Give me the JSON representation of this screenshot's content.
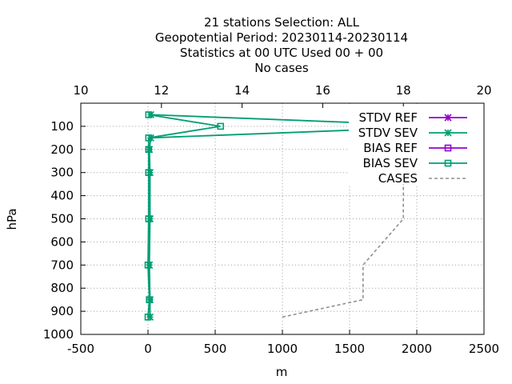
{
  "title_lines": [
    "21 stations Selection: ALL",
    "Geopotential  Period: 20230114-20230114",
    "Statistics at 00 UTC  Used  00 + 00",
    "No cases"
  ],
  "chart_data": {
    "type": "line",
    "xlabel": "m",
    "ylabel": "hPa",
    "x_range": [
      -500,
      2500
    ],
    "y_range": [
      0,
      1000
    ],
    "y_inverted": true,
    "x_ticks": [
      -500,
      0,
      500,
      1000,
      1500,
      2000,
      2500
    ],
    "y_ticks": [
      100,
      200,
      300,
      400,
      500,
      600,
      700,
      800,
      900,
      1000
    ],
    "x2_range": [
      10,
      20
    ],
    "x2_ticks": [
      10,
      12,
      14,
      16,
      18,
      20
    ],
    "grid": true,
    "legend_position": "top-right",
    "series": [
      {
        "name": "STDV REF",
        "color": "#9400d3",
        "marker": "x-star",
        "axis": "bottom",
        "points": []
      },
      {
        "name": "STDV SEV",
        "color": "#009e73",
        "marker": "x-star",
        "axis": "bottom",
        "points": [
          [
            15,
            925
          ],
          [
            15,
            850
          ],
          [
            10,
            700
          ],
          [
            15,
            500
          ],
          [
            15,
            300
          ],
          [
            10,
            200
          ],
          [
            20,
            150
          ],
          [
            2270,
            100
          ],
          [
            20,
            50
          ]
        ]
      },
      {
        "name": "BIAS REF",
        "color": "#9400d3",
        "marker": "square",
        "axis": "bottom",
        "points": []
      },
      {
        "name": "BIAS SEV",
        "color": "#009e73",
        "marker": "square",
        "axis": "bottom",
        "points": [
          [
            0,
            925
          ],
          [
            10,
            850
          ],
          [
            0,
            700
          ],
          [
            5,
            500
          ],
          [
            5,
            300
          ],
          [
            5,
            200
          ],
          [
            5,
            150
          ],
          [
            540,
            100
          ],
          [
            5,
            50
          ]
        ]
      },
      {
        "name": "CASES",
        "color": "#909090",
        "marker": "none",
        "dashed": true,
        "axis": "top",
        "points": [
          [
            15,
            925
          ],
          [
            17,
            850
          ],
          [
            17,
            700
          ],
          [
            18,
            500
          ],
          [
            18,
            300
          ],
          [
            18,
            200
          ]
        ]
      }
    ]
  }
}
